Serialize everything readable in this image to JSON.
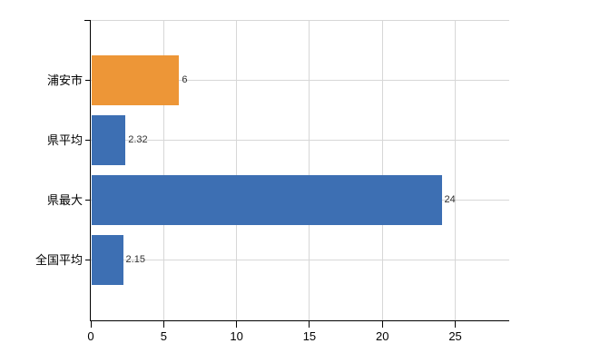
{
  "chart_data": {
    "type": "bar",
    "orientation": "horizontal",
    "title": "",
    "xlabel": "",
    "ylabel": "",
    "categories": [
      "浦安市",
      "県平均",
      "県最大",
      "全国平均"
    ],
    "values": [
      6,
      2.32,
      24,
      2.15
    ],
    "value_labels": [
      "6",
      "2.32",
      "24",
      "2.15"
    ],
    "bar_colors": [
      "#ED9637",
      "#3D6FB3",
      "#3D6FB3",
      "#3D6FB3"
    ],
    "x_ticks": [
      "0",
      "5",
      "10",
      "15",
      "20",
      "25"
    ],
    "x_tick_values": [
      0,
      5,
      10,
      15,
      20,
      25
    ],
    "xlim": [
      0,
      28.7
    ],
    "grid": true,
    "legend": false,
    "colors": {
      "grid": "#d7d7d7",
      "axis": "#000000",
      "tick_label": "#000000",
      "value_label": "#303030",
      "background": "#ffffff"
    }
  }
}
